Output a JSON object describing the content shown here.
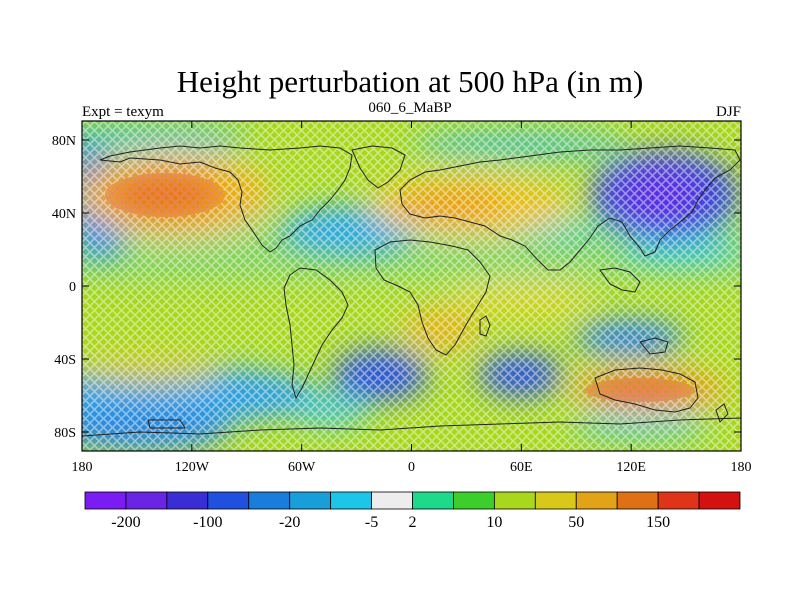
{
  "title": "Height perturbation at 500 hPa (in m)",
  "subtitle_left": "Expt = texym",
  "subtitle_center": "060_6_MaBP",
  "subtitle_right": "DJF",
  "lat_ticks": [
    "80N",
    "40N",
    "0",
    "40S",
    "80S"
  ],
  "lon_ticks": [
    "180",
    "120W",
    "60W",
    "0",
    "60E",
    "120E",
    "180"
  ],
  "colorbar": {
    "colors": [
      "#7a1cf2",
      "#6a24e4",
      "#3a2dd6",
      "#2050e0",
      "#1a7ddc",
      "#189ed9",
      "#1cc6e8",
      "#ededed",
      "#1cd98c",
      "#3ccf2c",
      "#a8d81c",
      "#d8c81a",
      "#e2a416",
      "#e07014",
      "#e0341a",
      "#d41010"
    ],
    "labels": [
      "-200",
      "-100",
      "-20",
      "-5",
      "2",
      "10",
      "50",
      "150"
    ],
    "label_after_box": [
      1,
      3,
      5,
      7,
      8,
      10,
      12,
      14
    ]
  },
  "colors": {
    "background_field": "#a8d81c",
    "land_outline": "#202020",
    "axis": "#000000"
  }
}
